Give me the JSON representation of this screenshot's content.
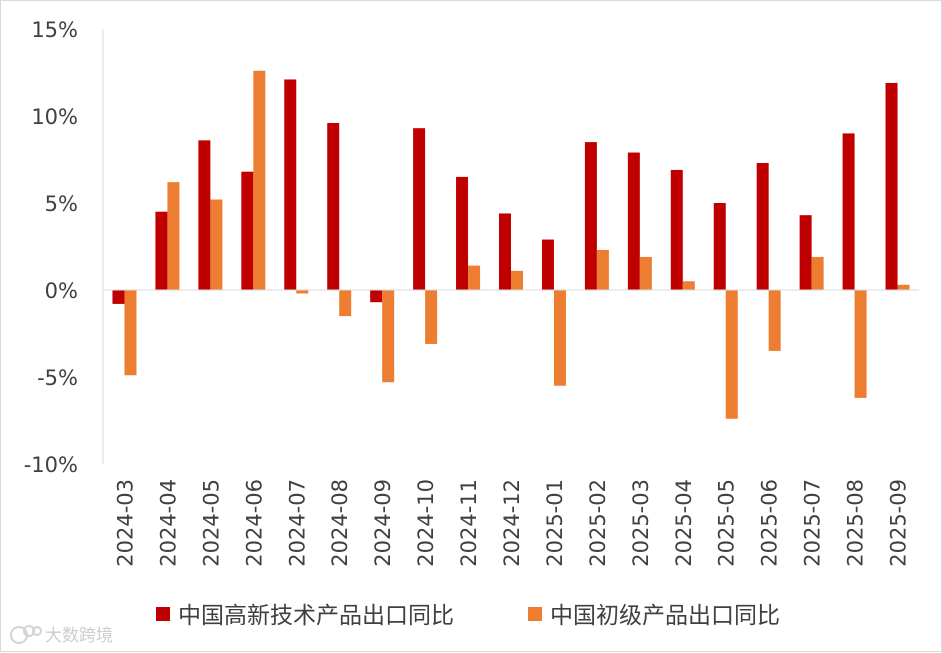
{
  "chart_data": {
    "type": "bar",
    "title": "",
    "xlabel": "",
    "ylabel": "",
    "ylim": [
      -10,
      15
    ],
    "y_ticks": [
      "15%",
      "10%",
      "5%",
      "0%",
      "-5%",
      "-10%"
    ],
    "y_tick_values": [
      15,
      10,
      5,
      0,
      -5,
      -10
    ],
    "grid": false,
    "legend_position": "bottom",
    "categories": [
      "2024-03",
      "2024-04",
      "2024-05",
      "2024-06",
      "2024-07",
      "2024-08",
      "2024-09",
      "2024-10",
      "2024-11",
      "2024-12",
      "2025-01",
      "2025-02",
      "2025-03",
      "2025-04",
      "2025-05",
      "2025-06",
      "2025-07",
      "2025-08",
      "2025-09"
    ],
    "series": [
      {
        "name": "中国高新技术产品出口同比",
        "color": "#c00000",
        "values": [
          -0.8,
          4.5,
          8.6,
          6.8,
          12.1,
          9.6,
          -0.7,
          9.3,
          6.5,
          4.4,
          2.9,
          8.5,
          7.9,
          6.9,
          5.0,
          7.3,
          4.3,
          9.0,
          11.9
        ]
      },
      {
        "name": "中国初级产品出口同比",
        "color": "#ed7d31",
        "values": [
          -4.9,
          6.2,
          5.2,
          12.6,
          -0.2,
          -1.5,
          -5.3,
          -3.1,
          1.4,
          1.1,
          -5.5,
          2.3,
          1.9,
          0.5,
          -7.4,
          -3.5,
          1.9,
          -6.2,
          0.3
        ]
      }
    ]
  },
  "watermark": {
    "text": "大数跨境",
    "icon": "watermark-logo-icon"
  }
}
